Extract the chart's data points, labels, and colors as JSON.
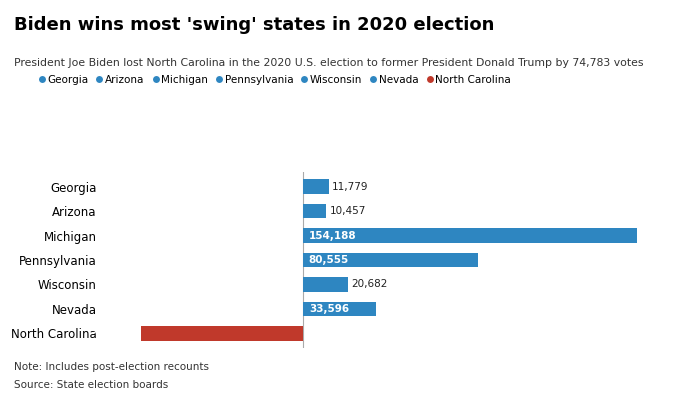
{
  "title": "Biden wins most 'swing' states in 2020 election",
  "subtitle": "President Joe Biden lost North Carolina in the 2020 U.S. election to former President Donald Trump by 74,783 votes",
  "note": "Note: Includes post-election recounts",
  "source": "Source: State election boards",
  "states": [
    "Georgia",
    "Arizona",
    "Michigan",
    "Pennsylvania",
    "Wisconsin",
    "Nevada",
    "North Carolina"
  ],
  "values": [
    11779,
    10457,
    154188,
    80555,
    20682,
    33596,
    -74783
  ],
  "colors": [
    "#2e86c1",
    "#2e86c1",
    "#2e86c1",
    "#2e86c1",
    "#2e86c1",
    "#2e86c1",
    "#c0392b"
  ],
  "legend_labels": [
    "Georgia",
    "Arizona",
    "Michigan",
    "Pennsylvania",
    "Wisconsin",
    "Nevada",
    "North Carolina"
  ],
  "legend_colors": [
    "#2e86c1",
    "#2e86c1",
    "#2e86c1",
    "#2e86c1",
    "#2e86c1",
    "#2e86c1",
    "#c0392b"
  ],
  "bg_color": "#ffffff",
  "bar_height": 0.6,
  "xlim": [
    -90000,
    175000
  ],
  "label_inside_threshold": 30000
}
